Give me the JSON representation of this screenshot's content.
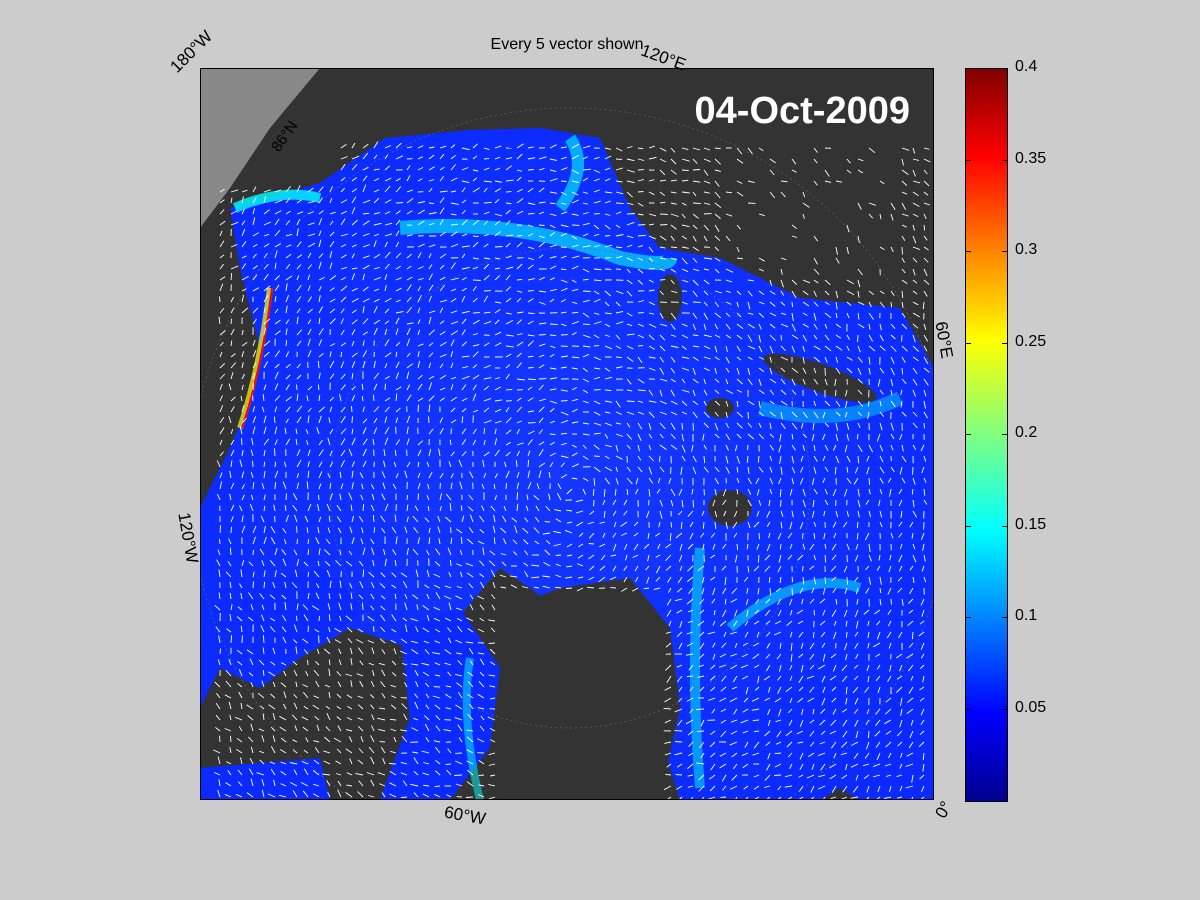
{
  "title": "Every 5 vector shown",
  "date_label": "04-Oct-2009",
  "lon_labels": {
    "w180": "180°W",
    "e120": "120°E",
    "e60": "60°E",
    "w120": "120°W",
    "w60": "60°W",
    "zero": "0°"
  },
  "lat_labels": {
    "n86": "86°N"
  },
  "colorbar": {
    "min": 0,
    "max": 0.4,
    "ticks": [
      "0.4",
      "0.35",
      "0.3",
      "0.25",
      "0.2",
      "0.15",
      "0.1",
      "0.05"
    ],
    "colormap": "jet"
  },
  "colors": {
    "background": "#cccccc",
    "land": "#333333",
    "outside": "#888888",
    "ocean_low": "#0a2aff",
    "vector": "#ffffff"
  }
}
